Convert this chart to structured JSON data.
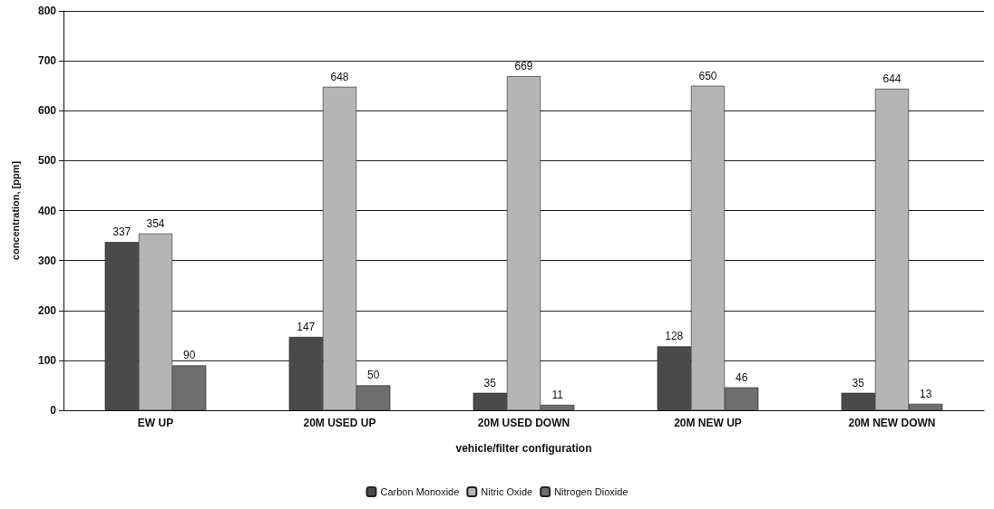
{
  "chart_data": {
    "type": "bar",
    "xlabel": "vehicle/filter configuration",
    "ylabel": "concentration, [ppm]",
    "categories": [
      "EW UP",
      "20M USED UP",
      "20M USED DOWN",
      "20M NEW UP",
      "20M NEW DOWN"
    ],
    "series": [
      {
        "name": "Carbon Monoxide",
        "color": "#4a4a4a",
        "values": [
          337,
          147,
          35,
          128,
          35
        ]
      },
      {
        "name": "Nitric Oxide",
        "color": "#b5b5b5",
        "values": [
          354,
          648,
          669,
          650,
          644
        ]
      },
      {
        "name": "Nitrogen Dioxide",
        "color": "#6e6e6e",
        "values": [
          90,
          50,
          11,
          46,
          13
        ]
      }
    ],
    "ylim": [
      0,
      800
    ],
    "yticks": [
      0,
      100,
      200,
      300,
      400,
      500,
      600,
      700,
      800
    ],
    "grid": "y",
    "legend": "bottom",
    "data_labels": true
  }
}
